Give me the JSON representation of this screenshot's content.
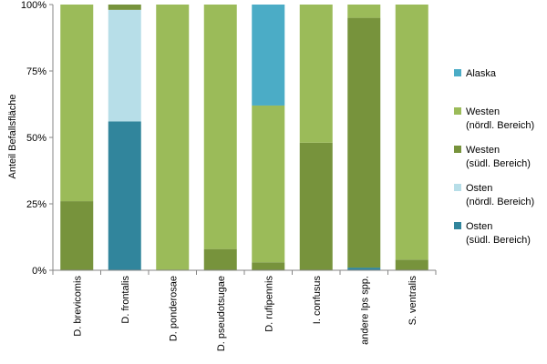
{
  "chart_data": {
    "type": "bar",
    "stacked": true,
    "ylabel": "Anteil Befallsfläche",
    "ylim": [
      0,
      100
    ],
    "ytick_labels": [
      "0%",
      "25%",
      "50%",
      "75%",
      "100%"
    ],
    "yticks": [
      0,
      25,
      50,
      75,
      100
    ],
    "categories": [
      "D. brevicomis",
      "D. frontalis",
      "D. ponderosae",
      "D. pseudotsugae",
      "D. rufipennis",
      "I. confusus",
      "andere Ips spp.",
      "S. ventralis"
    ],
    "series": [
      {
        "name": "Osten (südl. Bereich)",
        "legend_lines": [
          "Osten",
          "(südl. Bereich)"
        ],
        "color": "#31859c",
        "values": [
          0,
          56,
          0,
          0,
          0,
          0,
          1,
          0
        ]
      },
      {
        "name": "Osten (nördl. Bereich)",
        "legend_lines": [
          "Osten",
          "(nördl. Bereich)"
        ],
        "color": "#b7dee8",
        "values": [
          0,
          42,
          0,
          0,
          0,
          0,
          0,
          0
        ]
      },
      {
        "name": "Westen (südl. Bereich)",
        "legend_lines": [
          "Westen",
          "(südl. Bereich)"
        ],
        "color": "#77933c",
        "values": [
          26,
          2,
          0,
          8,
          3,
          48,
          94,
          4
        ]
      },
      {
        "name": "Westen (nördl. Bereich)",
        "legend_lines": [
          "Westen",
          "(nördl. Bereich)"
        ],
        "color": "#9bbb59",
        "values": [
          74,
          0,
          100,
          92,
          59,
          52,
          5,
          96
        ]
      },
      {
        "name": "Alaska",
        "legend_lines": [
          "Alaska"
        ],
        "color": "#4bacc6",
        "values": [
          0,
          0,
          0,
          0,
          38,
          0,
          0,
          0
        ]
      }
    ],
    "legend_position": "right",
    "grid": false
  }
}
